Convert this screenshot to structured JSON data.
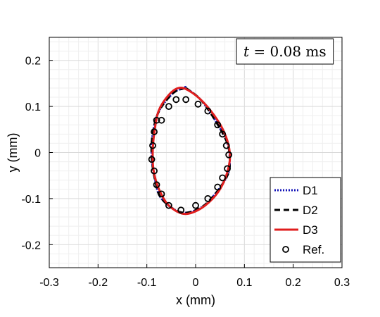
{
  "chart_data": {
    "type": "line",
    "xlabel": "x (mm)",
    "ylabel": "y (mm)",
    "xlim": [
      -0.3,
      0.3
    ],
    "ylim": [
      -0.25,
      0.25
    ],
    "xticks": [
      -0.3,
      -0.2,
      -0.1,
      0,
      0.1,
      0.2,
      0.3
    ],
    "yticks": [
      -0.2,
      -0.1,
      0,
      0.1,
      0.2
    ],
    "xtick_labels": [
      "-0.3",
      "-0.2",
      "-0.1",
      "0",
      "0.1",
      "0.2",
      "0.3"
    ],
    "ytick_labels": [
      "-0.2",
      "-0.1",
      "0",
      "0.1",
      "0.2"
    ],
    "grid": true,
    "legend_position": "bottom-right",
    "annotation": {
      "var": "t",
      "rest": " = 0.08 ms"
    },
    "series": [
      {
        "name": "D1",
        "style": "dotted",
        "color": "#1515b8",
        "x": [
          -0.02,
          0.01,
          0.04,
          0.065,
          0.07,
          0.065,
          0.04,
          0.01,
          -0.03,
          -0.07,
          -0.083,
          -0.09,
          -0.088,
          -0.075,
          -0.045,
          -0.02
        ],
        "y": [
          0.14,
          0.115,
          0.07,
          0.02,
          -0.02,
          -0.05,
          -0.09,
          -0.12,
          -0.13,
          -0.1,
          -0.06,
          -0.01,
          0.04,
          0.09,
          0.13,
          0.14
        ]
      },
      {
        "name": "D2",
        "style": "dashed",
        "color": "#000000",
        "x": [
          -0.02,
          0.01,
          0.04,
          0.065,
          0.07,
          0.065,
          0.04,
          0.01,
          -0.03,
          -0.07,
          -0.083,
          -0.09,
          -0.088,
          -0.075,
          -0.045,
          -0.02
        ],
        "y": [
          0.14,
          0.115,
          0.07,
          0.02,
          -0.02,
          -0.05,
          -0.09,
          -0.12,
          -0.13,
          -0.1,
          -0.06,
          -0.01,
          0.04,
          0.09,
          0.13,
          0.14
        ]
      },
      {
        "name": "D3",
        "style": "solid",
        "color": "#e01e1e",
        "x": [
          -0.035,
          -0.015,
          0.015,
          0.045,
          0.062,
          0.07,
          0.068,
          0.055,
          0.035,
          0.005,
          -0.025,
          -0.055,
          -0.075,
          -0.086,
          -0.088,
          -0.085,
          -0.076,
          -0.055
        ],
        "y": [
          0.14,
          0.135,
          0.11,
          0.07,
          0.035,
          0.0,
          -0.03,
          -0.07,
          -0.1,
          -0.125,
          -0.133,
          -0.115,
          -0.08,
          -0.04,
          0.0,
          0.04,
          0.09,
          0.125
        ]
      },
      {
        "name": "Ref.",
        "style": "markers",
        "color": "#000000",
        "x": [
          -0.07,
          -0.055,
          -0.04,
          -0.02,
          0.005,
          0.025,
          0.045,
          0.055,
          0.063,
          0.068,
          0.065,
          0.055,
          0.045,
          0.025,
          0.0,
          -0.03,
          -0.055,
          -0.07,
          -0.08,
          -0.085,
          -0.09,
          -0.088,
          -0.085,
          -0.08
        ],
        "y": [
          0.07,
          0.1,
          0.115,
          0.115,
          0.105,
          0.09,
          0.06,
          0.04,
          0.015,
          -0.005,
          -0.035,
          -0.055,
          -0.075,
          -0.1,
          -0.115,
          -0.125,
          -0.115,
          -0.09,
          -0.07,
          -0.04,
          -0.015,
          0.015,
          0.045,
          0.07
        ]
      }
    ]
  }
}
